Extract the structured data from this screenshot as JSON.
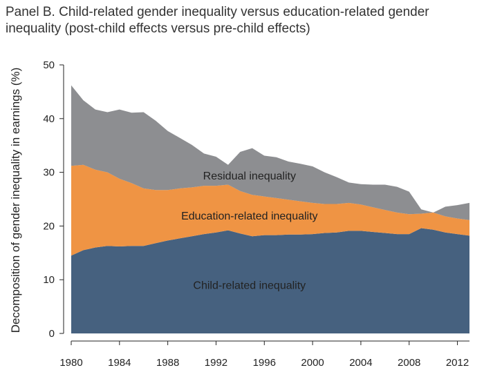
{
  "chart_data": {
    "type": "area",
    "title": "Panel B. Child-related gender inequality versus education-related gender inequality (post-child effects versus pre-child effects)",
    "xlabel": "",
    "ylabel": "Decomposition of gender inequality in earnings (%)",
    "xlim": [
      1980,
      2013
    ],
    "ylim": [
      0,
      50
    ],
    "x_ticks": [
      1980,
      1984,
      1988,
      1992,
      1996,
      2000,
      2004,
      2008,
      2012
    ],
    "y_ticks": [
      0,
      10,
      20,
      30,
      40,
      50
    ],
    "stacked": true,
    "x": [
      1980,
      1981,
      1982,
      1983,
      1984,
      1985,
      1986,
      1987,
      1988,
      1989,
      1990,
      1991,
      1992,
      1993,
      1994,
      1995,
      1996,
      1997,
      1998,
      1999,
      2000,
      2001,
      2002,
      2003,
      2004,
      2005,
      2006,
      2007,
      2008,
      2009,
      2010,
      2011,
      2012,
      2013
    ],
    "series": [
      {
        "name": "Child-related inequality",
        "color": "#46617f",
        "values": [
          14.5,
          15.5,
          16.0,
          16.3,
          16.2,
          16.3,
          16.3,
          16.8,
          17.3,
          17.7,
          18.1,
          18.5,
          18.8,
          19.2,
          18.6,
          18.1,
          18.3,
          18.3,
          18.4,
          18.4,
          18.5,
          18.7,
          18.8,
          19.1,
          19.1,
          18.9,
          18.7,
          18.5,
          18.5,
          19.6,
          19.3,
          18.8,
          18.5,
          18.2
        ]
      },
      {
        "name": "Education-related inequality",
        "color": "#ef9444",
        "values": [
          16.7,
          15.9,
          14.5,
          13.7,
          12.6,
          11.7,
          10.7,
          9.9,
          9.4,
          9.3,
          9.1,
          9.0,
          8.7,
          8.5,
          7.9,
          7.7,
          7.2,
          6.9,
          6.5,
          6.2,
          5.8,
          5.4,
          5.3,
          5.2,
          4.9,
          4.6,
          4.3,
          4.0,
          3.7,
          2.7,
          3.2,
          3.0,
          2.9,
          2.9
        ]
      },
      {
        "name": "Residual inequality",
        "color": "#8d8e91",
        "values": [
          15.0,
          12.0,
          11.2,
          11.2,
          12.9,
          13.1,
          14.2,
          12.9,
          11.0,
          9.4,
          7.9,
          6.0,
          5.4,
          3.7,
          7.3,
          8.7,
          7.6,
          7.6,
          7.1,
          7.0,
          6.8,
          5.9,
          5.0,
          3.8,
          3.8,
          4.2,
          4.7,
          4.8,
          4.2,
          0.8,
          0.0,
          1.8,
          2.5,
          3.2
        ]
      }
    ],
    "annotations": [
      {
        "text": "Residual inequality",
        "series": "Residual inequality"
      },
      {
        "text": "Education-related inequality",
        "series": "Education-related inequality"
      },
      {
        "text": "Child-related inequality",
        "series": "Child-related inequality"
      }
    ]
  }
}
